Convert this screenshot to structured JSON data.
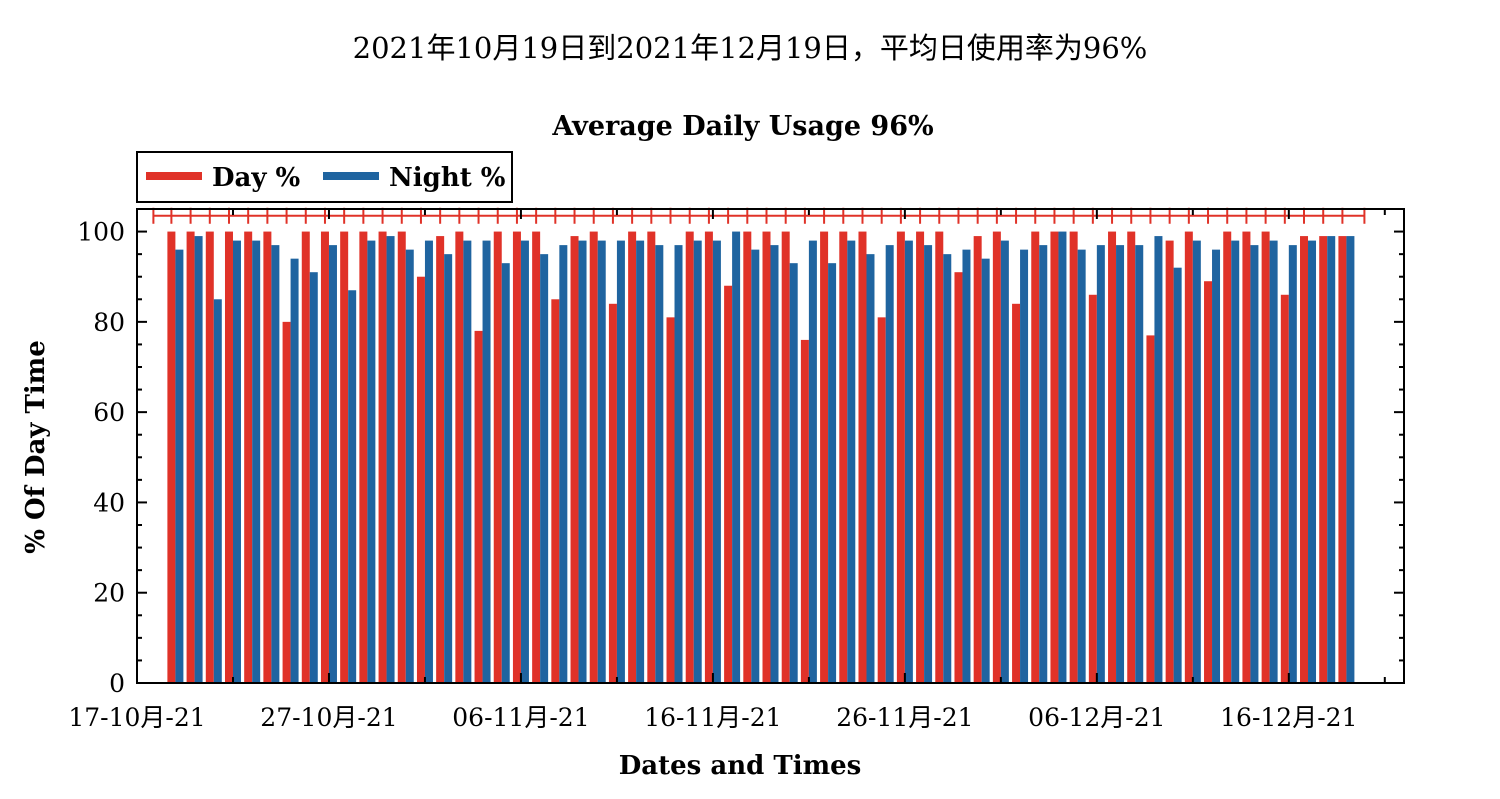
{
  "chart_data": {
    "type": "bar",
    "title": "2021年10月19日到2021年12月19日，平均日使用率为96%",
    "subtitle": "Average Daily Usage 96%",
    "xlabel": "Dates and Times",
    "ylabel": "% Of Day Time",
    "ylim": [
      0,
      105
    ],
    "yticks": [
      0,
      20,
      40,
      60,
      80,
      100
    ],
    "x_range": [
      "2021-10-17",
      "2021-12-22"
    ],
    "xticks": [
      {
        "date": "2021-10-17",
        "label": "17-10月-21"
      },
      {
        "date": "2021-10-27",
        "label": "27-10月-21"
      },
      {
        "date": "2021-11-06",
        "label": "06-11月-21"
      },
      {
        "date": "2021-11-16",
        "label": "16-11月-21"
      },
      {
        "date": "2021-11-26",
        "label": "26-11月-21"
      },
      {
        "date": "2021-12-06",
        "label": "06-12月-21"
      },
      {
        "date": "2021-12-16",
        "label": "16-12月-21"
      }
    ],
    "grid": false,
    "legend": "top-left",
    "start_date": "2021-10-19",
    "series": [
      {
        "name": "Day %",
        "color": "#e03228",
        "values": [
          100,
          100,
          100,
          100,
          100,
          100,
          80,
          100,
          100,
          100,
          100,
          100,
          100,
          90,
          99,
          100,
          78,
          100,
          100,
          100,
          85,
          99,
          100,
          84,
          100,
          100,
          81,
          100,
          100,
          88,
          100,
          100,
          100,
          76,
          100,
          100,
          100,
          81,
          100,
          100,
          100,
          91,
          99,
          100,
          84,
          100,
          100,
          100,
          86,
          100,
          100,
          77,
          98,
          100,
          89,
          100,
          100,
          100,
          86,
          99,
          99,
          99
        ]
      },
      {
        "name": "Night %",
        "color": "#1f64a0",
        "values": [
          96,
          99,
          85,
          98,
          98,
          97,
          94,
          91,
          97,
          87,
          98,
          99,
          96,
          98,
          95,
          98,
          98,
          93,
          98,
          95,
          97,
          98,
          98,
          98,
          98,
          97,
          97,
          98,
          98,
          100,
          96,
          97,
          93,
          98,
          93,
          98,
          95,
          97,
          98,
          97,
          95,
          96,
          94,
          98,
          96,
          97,
          100,
          96,
          97,
          97,
          97,
          99,
          92,
          98,
          96,
          98,
          97,
          98,
          97,
          98,
          99,
          99
        ]
      }
    ],
    "error_bar": {
      "value": 103.5,
      "color": "#e03228"
    }
  }
}
